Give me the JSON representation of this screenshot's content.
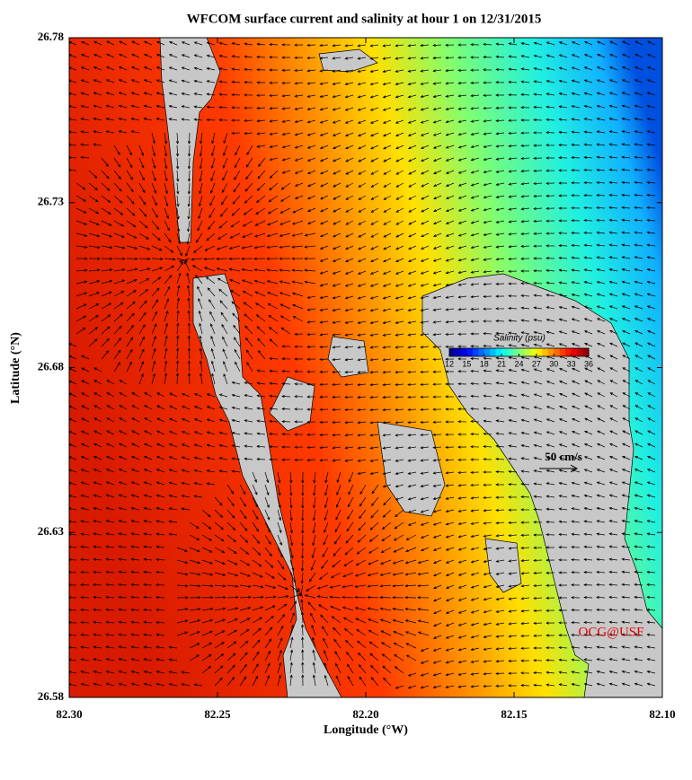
{
  "chart_data": {
    "type": "map",
    "title": "WFCOM surface current and salinity at hour 1 on 12/31/2015",
    "x_label": "Longitude (°W)",
    "y_label": "Latitude (°N)",
    "xlim": [
      82.3,
      82.1
    ],
    "xticks": [
      {
        "value": 82.3,
        "label": "82.30"
      },
      {
        "value": 82.25,
        "label": "82.25"
      },
      {
        "value": 82.2,
        "label": "82.20"
      },
      {
        "value": 82.15,
        "label": "82.15"
      },
      {
        "value": 82.1,
        "label": "82.10"
      }
    ],
    "ylim": [
      26.58,
      26.78
    ],
    "yticks": [
      26.58,
      26.63,
      26.68,
      26.73,
      26.78
    ],
    "colorbar": {
      "label": "Salinity (psu)",
      "lim": [
        12,
        36
      ],
      "ticks": [
        12,
        15,
        18,
        21,
        24,
        27,
        30,
        33,
        36
      ]
    },
    "reference_arrow": "50 cm/s",
    "annotation": "OCG@USF"
  }
}
